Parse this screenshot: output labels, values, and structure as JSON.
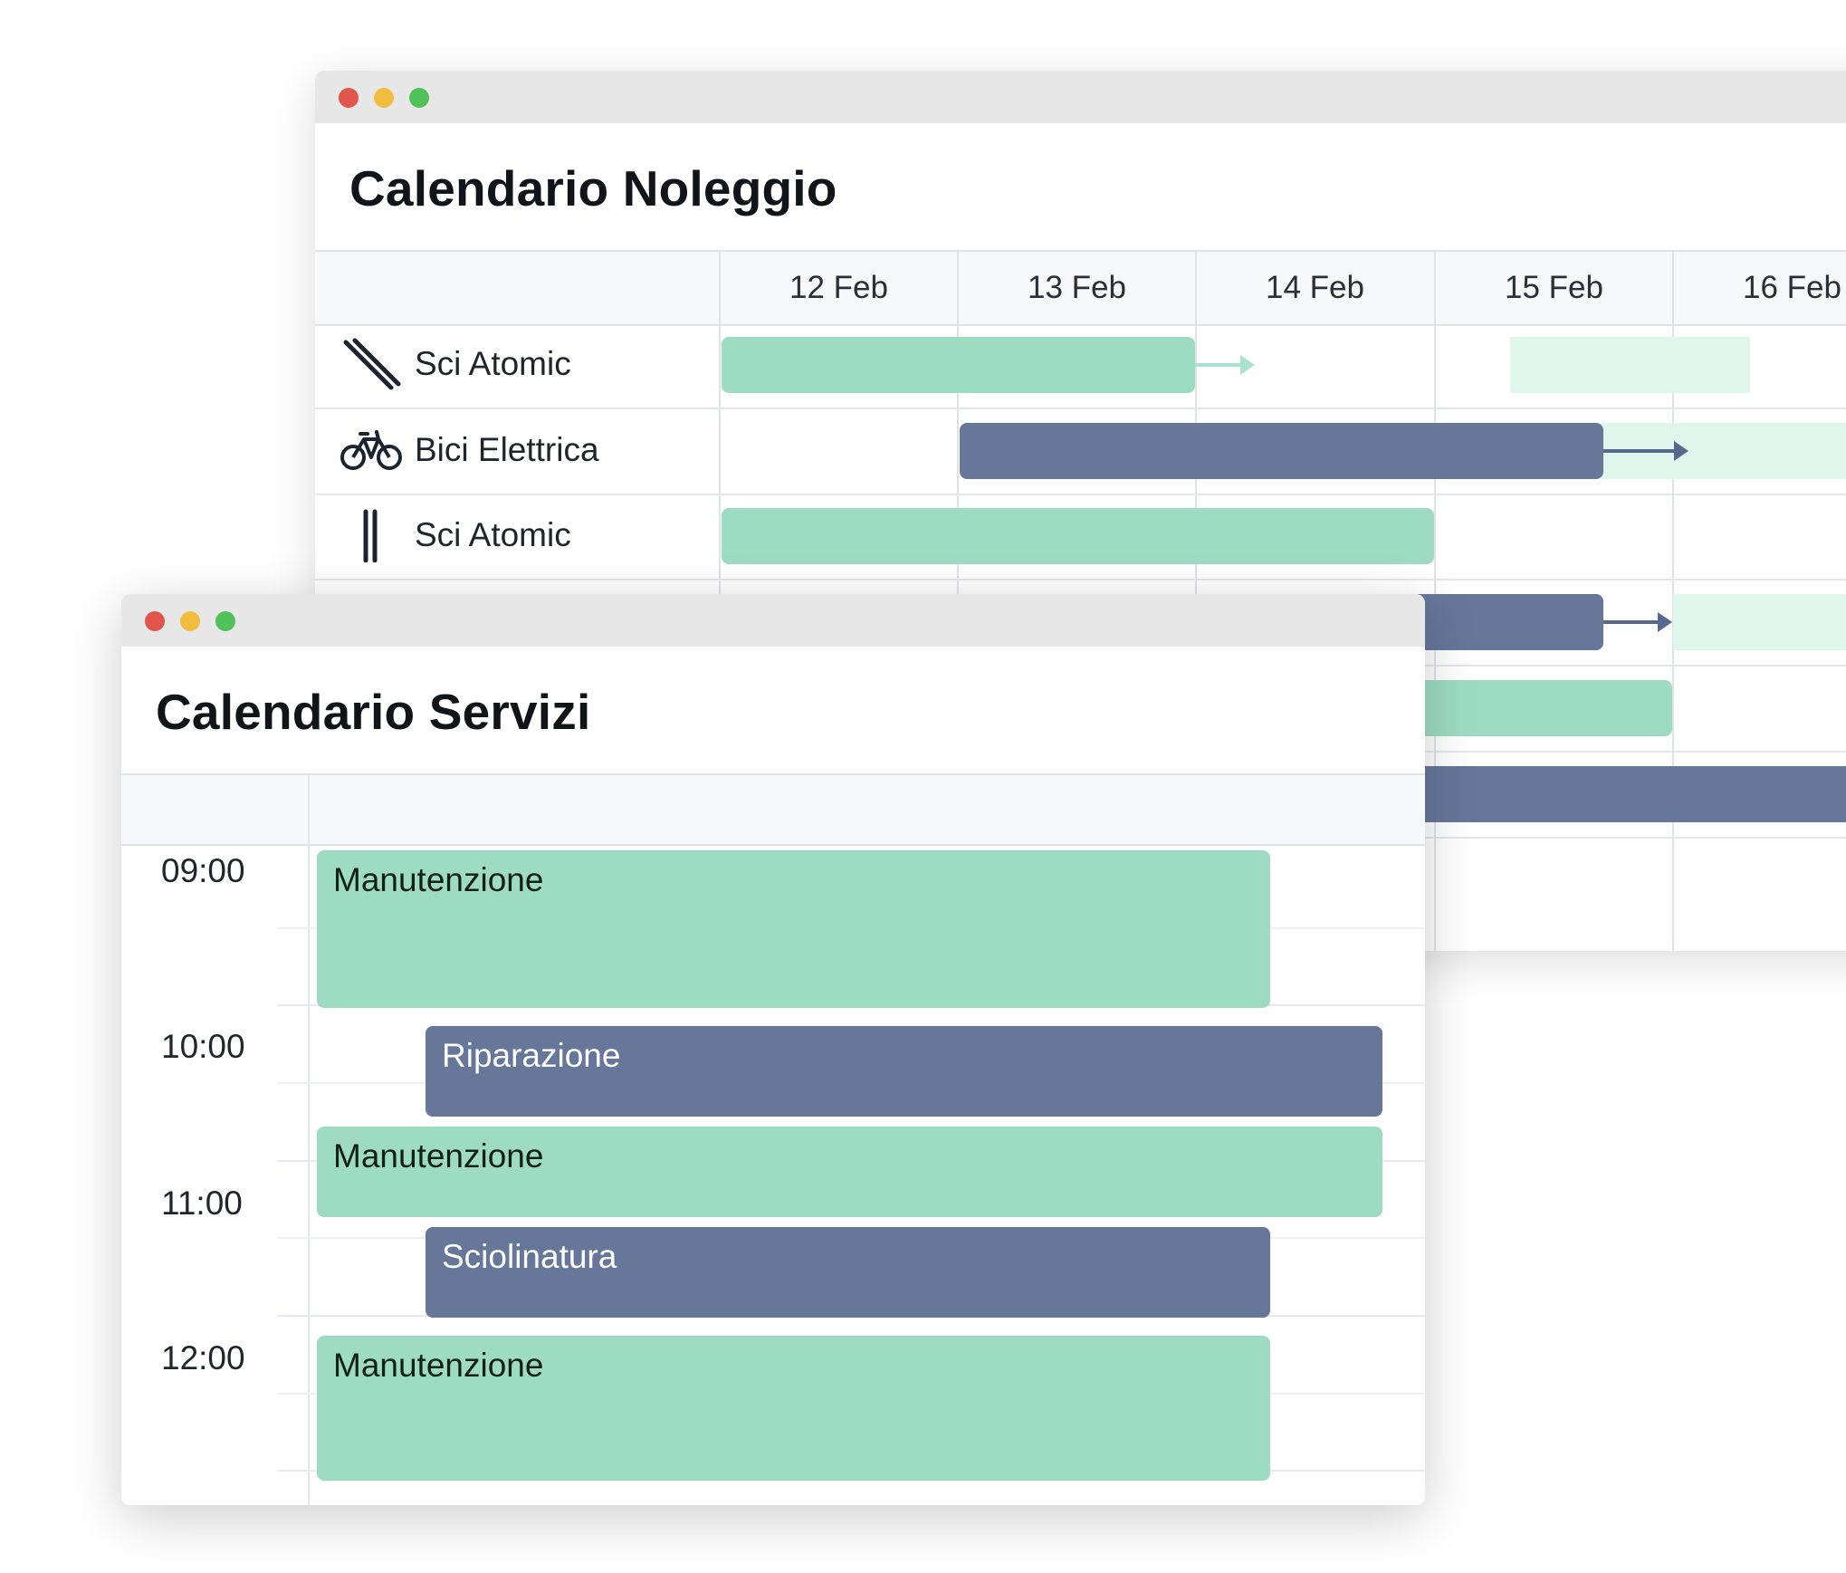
{
  "rental_window": {
    "title": "Calendario Noleggio",
    "dates": [
      "12 Feb",
      "13 Feb",
      "14 Feb",
      "15 Feb",
      "16 Feb"
    ],
    "resources": [
      {
        "label": "Sci Atomic",
        "icon": "ski-icon"
      },
      {
        "label": "Bici Elettrica",
        "icon": "bicycle-icon"
      },
      {
        "label": "Sci Atomic",
        "icon": "ski-pole-icon"
      }
    ],
    "colors": {
      "available": "#9ddcc3",
      "booked": "#66779a",
      "extended": "#dff6ec"
    }
  },
  "services_window": {
    "title": "Calendario Servizi",
    "times": [
      "09:00",
      "10:00",
      "11:00",
      "12:00"
    ],
    "events": [
      {
        "label": "Manutenzione",
        "color": "#9ddcc3"
      },
      {
        "label": "Riparazione",
        "color": "#66779a"
      },
      {
        "label": "Manutenzione",
        "color": "#9ddcc3"
      },
      {
        "label": "Sciolinatura",
        "color": "#66779a"
      },
      {
        "label": "Manutenzione",
        "color": "#9ddcc3"
      }
    ]
  }
}
